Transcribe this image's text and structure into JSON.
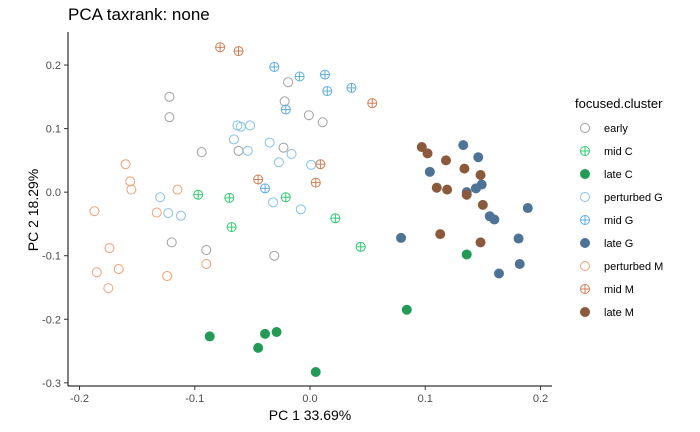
{
  "chart_data": {
    "type": "scatter",
    "title": "PCA taxrank: none",
    "xlabel": "PC 1 33.69%",
    "ylabel": "PC 2 18.29%",
    "xlim": [
      -0.21,
      0.21
    ],
    "ylim": [
      -0.305,
      0.252
    ],
    "xticks": [
      -0.2,
      -0.1,
      0.0,
      0.1,
      0.2
    ],
    "xtick_labels": [
      "-0.2",
      "-0.1",
      "0.0",
      "0.1",
      "0.2"
    ],
    "yticks": [
      0.2,
      0.1,
      0.0,
      -0.1,
      -0.2,
      -0.3
    ],
    "ytick_labels": [
      "0.2",
      "0.1",
      "0.0",
      "-0.1",
      "-0.2",
      "-0.3"
    ],
    "grid": false,
    "legend": {
      "title": "focused.cluster",
      "position": "right"
    },
    "series": [
      {
        "name": "early",
        "color": "#a0a0a0",
        "marker": "open-circle",
        "points": [
          [
            -0.122,
            0.15
          ],
          [
            -0.122,
            0.118
          ],
          [
            -0.022,
            0.143
          ],
          [
            -0.019,
            0.173
          ],
          [
            -0.001,
            0.121
          ],
          [
            -0.023,
            0.07
          ],
          [
            0.011,
            0.11
          ],
          [
            -0.094,
            0.063
          ],
          [
            -0.062,
            0.065
          ],
          [
            -0.12,
            -0.079
          ],
          [
            -0.09,
            -0.091
          ],
          [
            -0.031,
            -0.1
          ]
        ]
      },
      {
        "name": "mid C",
        "color": "#2ecc71",
        "marker": "crossed-circle",
        "points": [
          [
            -0.097,
            -0.004
          ],
          [
            -0.07,
            -0.009
          ],
          [
            -0.068,
            -0.055
          ],
          [
            -0.021,
            -0.008
          ],
          [
            0.022,
            -0.041
          ],
          [
            0.044,
            -0.086
          ]
        ]
      },
      {
        "name": "late C",
        "color": "#239b56",
        "marker": "filled-circle",
        "points": [
          [
            -0.087,
            -0.227
          ],
          [
            -0.039,
            -0.223
          ],
          [
            -0.029,
            -0.22
          ],
          [
            -0.045,
            -0.245
          ],
          [
            0.005,
            -0.283
          ],
          [
            0.084,
            -0.185
          ],
          [
            0.136,
            -0.098
          ]
        ]
      },
      {
        "name": "perturbed G",
        "color": "#85c1e9",
        "marker": "open-circle",
        "points": [
          [
            -0.13,
            -0.008
          ],
          [
            -0.123,
            -0.033
          ],
          [
            -0.112,
            -0.037
          ],
          [
            -0.066,
            0.083
          ],
          [
            -0.063,
            0.105
          ],
          [
            -0.052,
            0.105
          ],
          [
            -0.06,
            0.103
          ],
          [
            -0.054,
            0.065
          ],
          [
            -0.035,
            0.078
          ],
          [
            -0.027,
            0.047
          ],
          [
            -0.016,
            0.06
          ],
          [
            0.001,
            0.043
          ],
          [
            -0.032,
            -0.016
          ],
          [
            -0.008,
            -0.027
          ]
        ]
      },
      {
        "name": "mid G",
        "color": "#5dade2",
        "marker": "crossed-circle",
        "points": [
          [
            -0.031,
            0.197
          ],
          [
            -0.009,
            0.182
          ],
          [
            0.013,
            0.185
          ],
          [
            0.015,
            0.159
          ],
          [
            0.036,
            0.164
          ],
          [
            -0.021,
            0.13
          ],
          [
            -0.039,
            0.006
          ]
        ]
      },
      {
        "name": "late G",
        "color": "#4f7396",
        "marker": "filled-circle",
        "points": [
          [
            0.133,
            0.074
          ],
          [
            0.146,
            0.055
          ],
          [
            0.149,
            0.012
          ],
          [
            0.144,
            0.006
          ],
          [
            0.104,
            0.032
          ],
          [
            0.136,
            0.0
          ],
          [
            0.156,
            -0.038
          ],
          [
            0.16,
            -0.043
          ],
          [
            0.189,
            -0.025
          ],
          [
            0.079,
            -0.072
          ],
          [
            0.181,
            -0.073
          ],
          [
            0.182,
            -0.113
          ],
          [
            0.164,
            -0.128
          ]
        ]
      },
      {
        "name": "perturbed M",
        "color": "#f0a173",
        "marker": "open-circle",
        "points": [
          [
            -0.16,
            0.044
          ],
          [
            -0.156,
            0.017
          ],
          [
            -0.155,
            0.004
          ],
          [
            -0.187,
            -0.03
          ],
          [
            -0.133,
            -0.032
          ],
          [
            -0.115,
            0.004
          ],
          [
            -0.174,
            -0.088
          ],
          [
            -0.185,
            -0.126
          ],
          [
            -0.166,
            -0.121
          ],
          [
            -0.175,
            -0.151
          ],
          [
            -0.124,
            -0.132
          ],
          [
            -0.09,
            -0.113
          ]
        ]
      },
      {
        "name": "mid M",
        "color": "#d07e56",
        "marker": "crossed-circle",
        "points": [
          [
            -0.078,
            0.228
          ],
          [
            -0.062,
            0.222
          ],
          [
            0.054,
            0.14
          ],
          [
            -0.045,
            0.02
          ],
          [
            0.009,
            0.044
          ],
          [
            0.005,
            0.015
          ]
        ]
      },
      {
        "name": "late M",
        "color": "#8b5a3c",
        "marker": "filled-circle",
        "points": [
          [
            0.097,
            0.071
          ],
          [
            0.102,
            0.061
          ],
          [
            0.118,
            0.05
          ],
          [
            0.134,
            0.037
          ],
          [
            0.11,
            0.007
          ],
          [
            0.119,
            0.004
          ],
          [
            0.136,
            -0.004
          ],
          [
            0.148,
            0.027
          ],
          [
            0.15,
            -0.02
          ],
          [
            0.113,
            -0.066
          ],
          [
            0.148,
            -0.079
          ]
        ]
      }
    ]
  }
}
